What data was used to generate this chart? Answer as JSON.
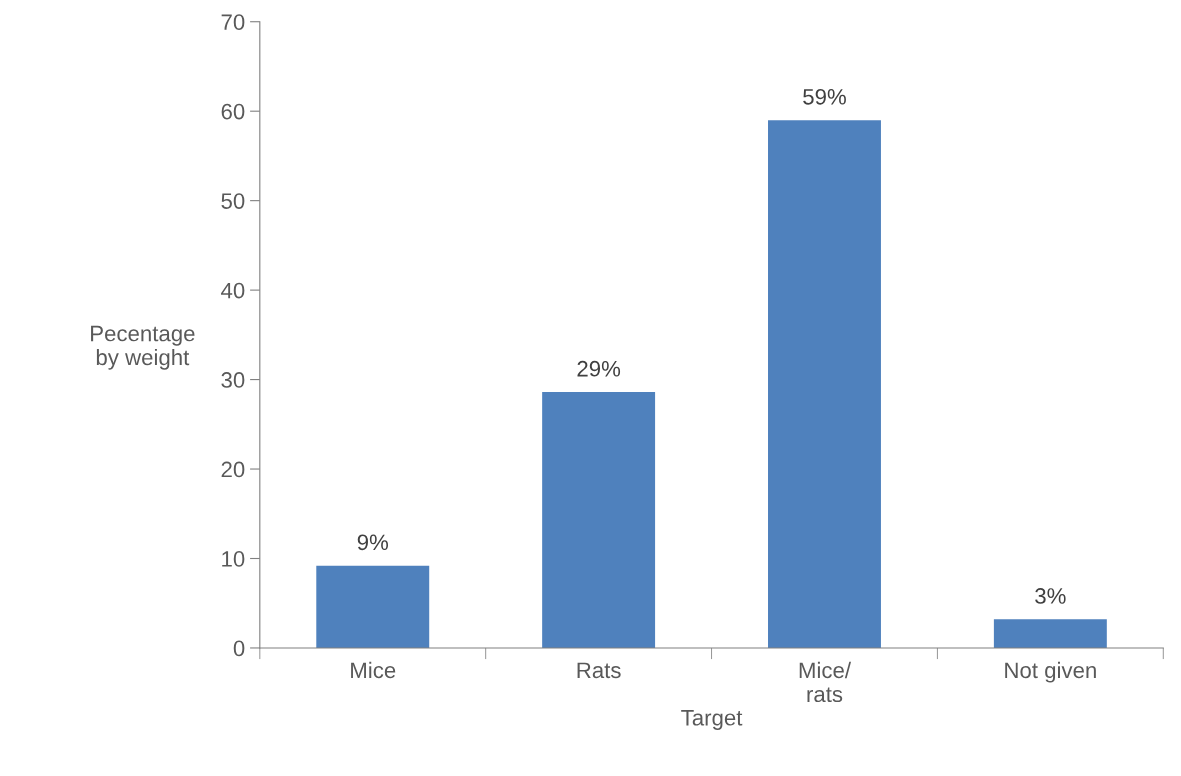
{
  "chart_data": {
    "type": "bar",
    "xlabel": "Target",
    "ylabel": "Pecentage\nby weight",
    "categories": [
      "Mice",
      "Rats",
      "Mice/\nrats",
      "Not given"
    ],
    "values": [
      9.2,
      28.6,
      59,
      3.2
    ],
    "value_labels": [
      "9%",
      "29%",
      "59%",
      "3%"
    ],
    "color": "#4f81bd",
    "ylim": [
      0,
      70
    ],
    "yticks": [
      0,
      10,
      20,
      30,
      40,
      50,
      60,
      70
    ],
    "grid": false,
    "legend": false
  }
}
